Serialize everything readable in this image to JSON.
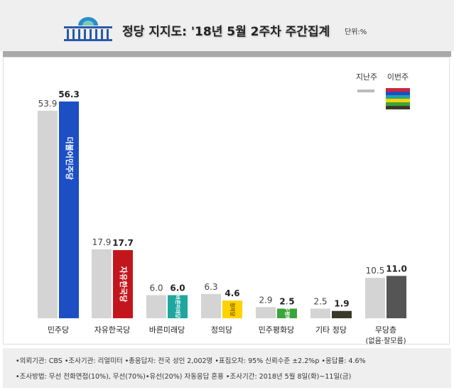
{
  "header": {
    "title": "정당 지지도: '18년 5월 2주차 주간집계",
    "unit": "단위:%"
  },
  "chart_data": {
    "type": "bar",
    "title": "정당 지지도: '18년 5월 2주차 주간집계",
    "categories": [
      "민주당",
      "자유한국당",
      "바른미래당",
      "정의당",
      "민주평화당",
      "기타 정당",
      "무당층"
    ],
    "category_sublabels": [
      "",
      "",
      "",
      "",
      "",
      "",
      "(없음·잘모름)"
    ],
    "series": [
      {
        "name": "지난주",
        "values": [
          53.9,
          17.9,
          6.0,
          6.3,
          2.9,
          2.5,
          10.5
        ],
        "color": "#d4d4d4"
      },
      {
        "name": "이번주",
        "values": [
          56.3,
          17.7,
          6.0,
          4.6,
          2.5,
          1.9,
          11.0
        ],
        "colors": [
          "#1c4fc4",
          "#c3161c",
          "#1fa69f",
          "#ffd200",
          "#3aa53a",
          "#3a3a2a",
          "#555555"
        ]
      }
    ],
    "party_logos": [
      "더불어민주당",
      "자유한국당",
      "바른미래당",
      "정의당",
      "민주평화당",
      "",
      ""
    ],
    "legend": "top-right",
    "ylim": [
      0,
      60
    ],
    "grid": false
  },
  "footer": {
    "line1": "•의뢰기관: CBS •조사기관: 리얼미터 •총응답자: 전국 성인 2,002명 •표집오차: 95% 신뢰수준 ±2.2%p •응답률: 4.6%",
    "line2": "•조사방법: 무선 전화면접(10%), 무선(70%)•유선(20%) 자동응답 혼용 •조사기간: 2018년 5월 8일(화)~11일(금)"
  }
}
